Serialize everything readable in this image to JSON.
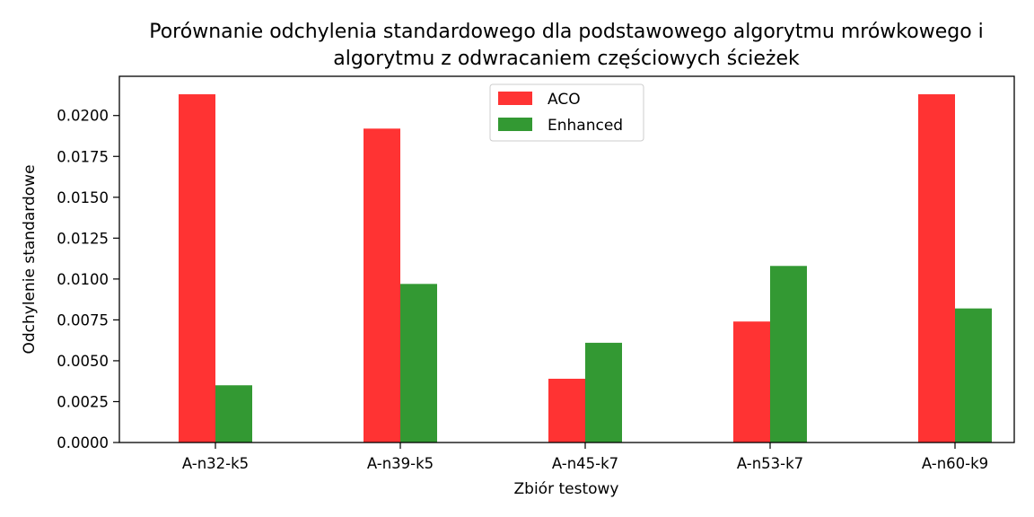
{
  "chart_data": {
    "type": "bar",
    "title": "Porównanie odchylenia standardowego dla podstawowego algorytmu mrówkowego i algorytmu z odwracaniem częściowych ścieżek",
    "title_lines": [
      "Porównanie odchylenia standardowego dla podstawowego algorytmu mrówkowego i",
      "algorytmu z odwracaniem częściowych ścieżek"
    ],
    "xlabel": "Zbiór testowy",
    "ylabel": "Odchylenie standardowe",
    "categories": [
      "A-n32-k5",
      "A-n39-k5",
      "A-n45-k7",
      "A-n53-k7",
      "A-n60-k9"
    ],
    "series": [
      {
        "name": "ACO",
        "color": "#ff3333",
        "values": [
          0.0213,
          0.0192,
          0.0039,
          0.0074,
          0.0213
        ]
      },
      {
        "name": "Enhanced",
        "color": "#339933",
        "values": [
          0.0035,
          0.0097,
          0.0061,
          0.0108,
          0.0082
        ]
      }
    ],
    "ylim": [
      0,
      0.0224
    ],
    "yticks": [
      "0.0000",
      "0.0025",
      "0.0050",
      "0.0075",
      "0.0100",
      "0.0125",
      "0.0150",
      "0.0175",
      "0.0200"
    ],
    "grid": false,
    "legend_position": "top-center"
  }
}
